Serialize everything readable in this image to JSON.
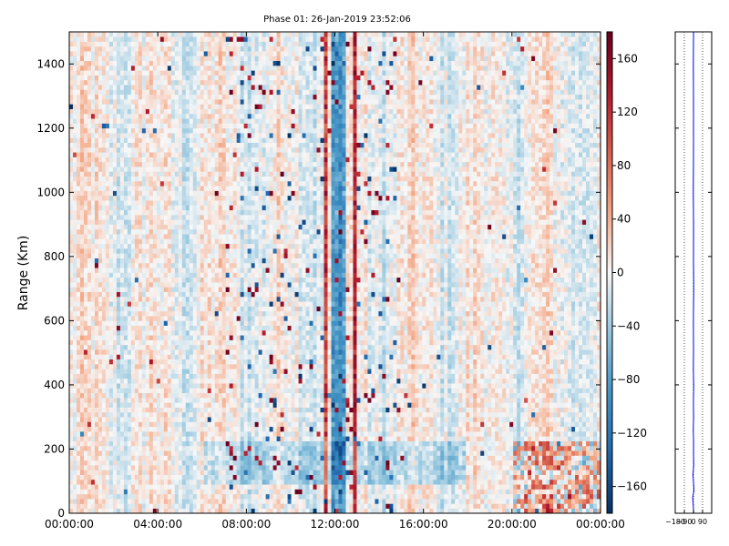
{
  "chart_data": [
    {
      "type": "heatmap",
      "title": "Phase 01: 26-Jan-2019 23:52:06",
      "ylabel": "Range (Km)",
      "xlabel": "",
      "x_ticks": [
        "00:00:00",
        "04:00:00",
        "08:00:00",
        "12:00:00",
        "16:00:00",
        "20:00:00",
        "00:00:00"
      ],
      "x_range_hours": [
        0,
        24
      ],
      "y_ticks": [
        0,
        200,
        400,
        600,
        800,
        1000,
        1200,
        1400
      ],
      "ylim": [
        0,
        1500
      ],
      "colorbar": {
        "colormap": "RdBu_r",
        "range": [
          -180,
          180
        ],
        "ticks": [
          "160",
          "120",
          "80",
          "40",
          "0",
          "−40",
          "−80",
          "−120",
          "−160"
        ],
        "tick_values": [
          160,
          120,
          80,
          40,
          0,
          -40,
          -80,
          -120,
          -160
        ]
      },
      "grid": false,
      "legend": "none",
      "description_values": {
        "red_column_hours": [
          11.6,
          12.9
        ],
        "blue_column_hours": [
          12.0,
          12.3
        ],
        "band_heights_km": [
          35,
          110,
          170,
          270
        ]
      }
    },
    {
      "type": "line",
      "title": "",
      "xlabel": "",
      "ylabel": "",
      "x_ticks": [
        "−180",
        "−90",
        "0",
        "90"
      ],
      "x_tick_values": [
        -180,
        -90,
        0,
        90
      ],
      "xlim": [
        -180,
        180
      ],
      "ylim": [
        0,
        1500
      ],
      "grid": "vertical dotted",
      "series": [
        {
          "color": "#0000ff",
          "profile": [
            [
              0,
              2
            ],
            [
              50,
              -8
            ],
            [
              70,
              6
            ],
            [
              90,
              2
            ],
            [
              120,
              -4
            ],
            [
              150,
              3
            ],
            [
              180,
              0
            ],
            [
              220,
              2
            ],
            [
              260,
              -1
            ],
            [
              300,
              1
            ],
            [
              350,
              0
            ],
            [
              400,
              2
            ],
            [
              450,
              -1
            ],
            [
              500,
              1
            ],
            [
              600,
              0
            ],
            [
              700,
              2
            ],
            [
              800,
              0
            ],
            [
              900,
              1
            ],
            [
              1000,
              -1
            ],
            [
              1100,
              1
            ],
            [
              1200,
              0
            ],
            [
              1300,
              1
            ],
            [
              1400,
              -1
            ],
            [
              1500,
              0
            ]
          ]
        }
      ]
    }
  ],
  "colors": {
    "line": "#0000ff",
    "axes": "#000000",
    "background": "#ffffff"
  }
}
